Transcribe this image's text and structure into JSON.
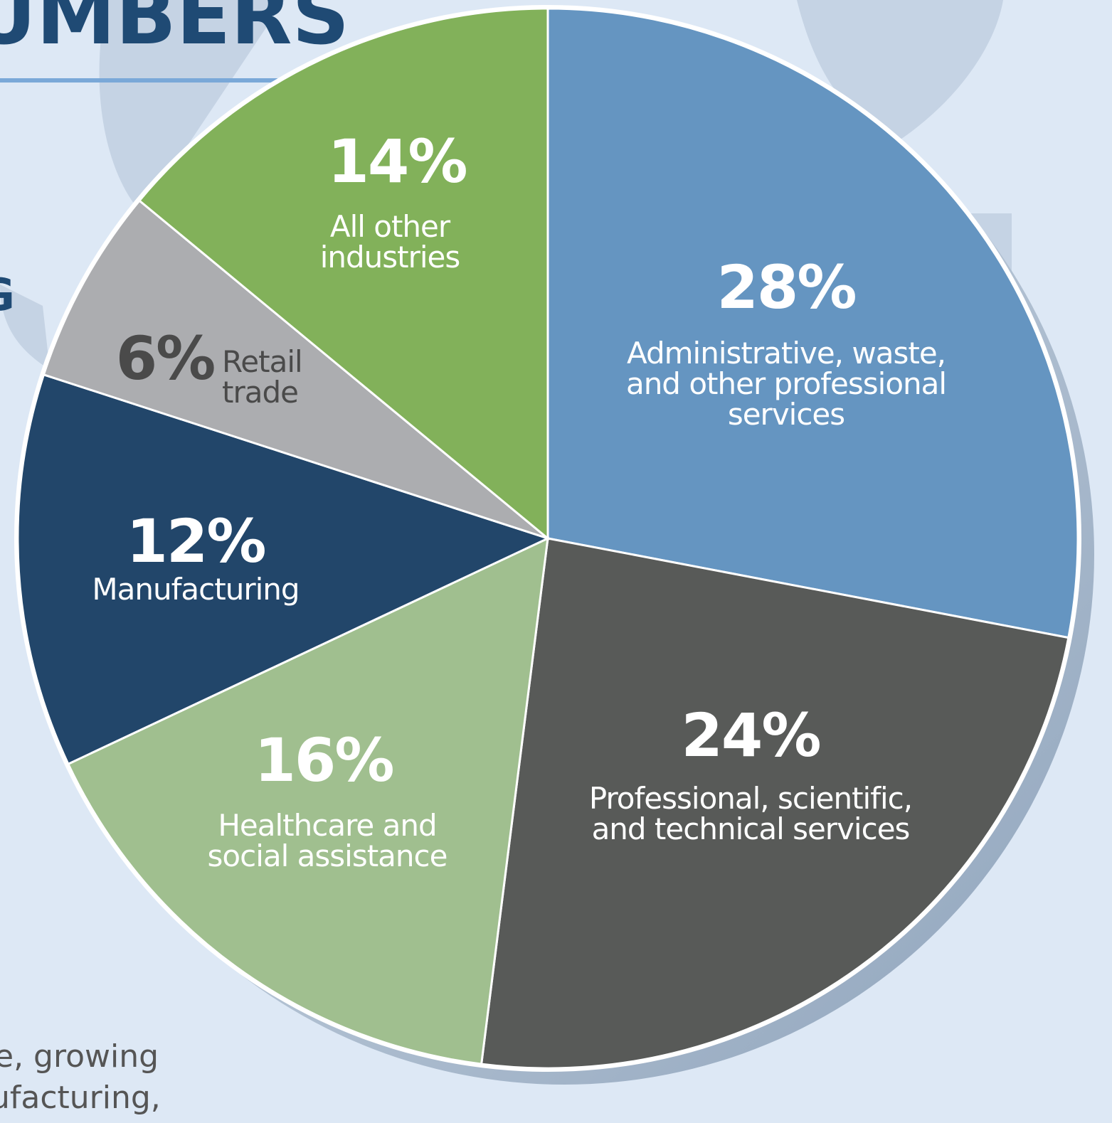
{
  "chart_data": {
    "type": "pie",
    "categories": [
      "Administrative, waste, and other professional services",
      "Professional, scientific, and technical services",
      "Healthcare and social assistance",
      "Manufacturing",
      "Retail trade",
      "All other industries"
    ],
    "values": [
      28,
      24,
      16,
      12,
      6,
      14
    ],
    "value_labels": [
      "28%",
      "24%",
      "16%",
      "12%",
      "6%",
      "14%"
    ],
    "colors": [
      "#6595c1",
      "#585a58",
      "#a0bf8f",
      "#22466a",
      "#acadb0",
      "#82b15a"
    ],
    "label_colors": [
      "#ffffff",
      "#ffffff",
      "#ffffff",
      "#ffffff",
      "#4a4a4a",
      "#ffffff"
    ],
    "annotations": [
      "UMBERS",
      "G",
      "e, growing",
      "ufacturing,"
    ]
  }
}
